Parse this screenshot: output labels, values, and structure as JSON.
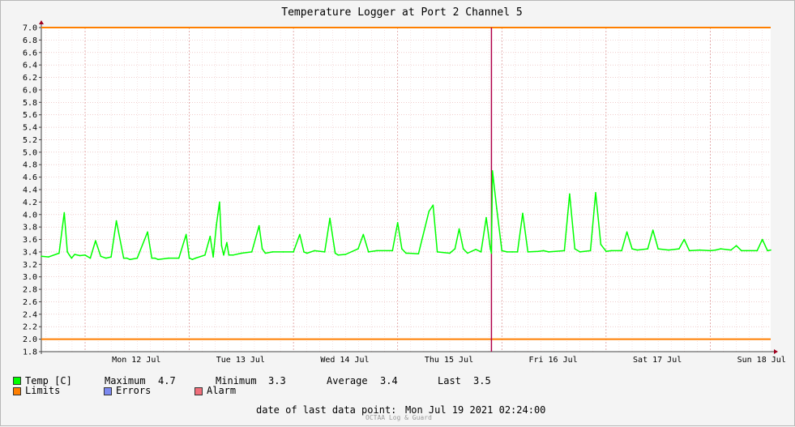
{
  "chart_data": {
    "type": "line",
    "title": "Temperature Logger at Port 2 Channel 5",
    "ylim": [
      1.8,
      7.0
    ],
    "yticks": [
      1.8,
      2.0,
      2.2,
      2.4,
      2.6,
      2.8,
      3.0,
      3.2,
      3.4,
      3.6,
      3.8,
      4.0,
      4.2,
      4.4,
      4.6,
      4.8,
      5.0,
      5.2,
      5.4,
      5.6,
      5.8,
      6.0,
      6.2,
      6.4,
      6.6,
      6.8,
      7.0
    ],
    "ytick_labels": [
      "1.8",
      "2.0",
      "2.2",
      "2.4",
      "2.6",
      "2.8",
      "3.0",
      "3.2",
      "3.4",
      "3.6",
      "3.8",
      "4.0",
      "4.2",
      "4.4",
      "4.6",
      "4.8",
      "5.0",
      "5.2",
      "5.4",
      "5.6",
      "5.8",
      "6.0",
      "6.2",
      "6.4",
      "6.6",
      "6.8",
      "7.0"
    ],
    "x_unit": "days since Mon 12 Jul 2021 00:00",
    "xlim": [
      -0.42,
      6.58
    ],
    "day_labels": [
      "Mon 12 Jul",
      "Tue 13 Jul",
      "Wed 14 Jul",
      "Thu 15 Jul",
      "Fri 16 Jul",
      "Sat 17 Jul",
      "Sun 18 Jul"
    ],
    "grid": true,
    "limits": {
      "upper": 7.0,
      "lower": 2.0,
      "color": "#ff7f00"
    },
    "marker": {
      "x": 3.9,
      "color": "#b0004a"
    },
    "series": [
      {
        "name": "Temp [C]",
        "color": "#00ff00",
        "x": [
          -0.42,
          -0.35,
          -0.25,
          -0.2,
          -0.17,
          -0.15,
          -0.13,
          -0.1,
          -0.05,
          0,
          0.05,
          0.1,
          0.15,
          0.2,
          0.25,
          0.3,
          0.37,
          0.4,
          0.43,
          0.5,
          0.6,
          0.64,
          0.67,
          0.7,
          0.8,
          0.9,
          0.97,
          1.0,
          1.03,
          1.06,
          1.15,
          1.2,
          1.23,
          1.26,
          1.29,
          1.31,
          1.33,
          1.36,
          1.38,
          1.42,
          1.5,
          1.6,
          1.67,
          1.7,
          1.73,
          1.8,
          1.9,
          2.0,
          2.06,
          2.1,
          2.13,
          2.2,
          2.3,
          2.35,
          2.4,
          2.43,
          2.5,
          2.62,
          2.67,
          2.72,
          2.8,
          2.95,
          3.0,
          3.04,
          3.08,
          3.1,
          3.2,
          3.3,
          3.34,
          3.38,
          3.5,
          3.55,
          3.59,
          3.63,
          3.67,
          3.75,
          3.8,
          3.85,
          3.89,
          3.9,
          3.91,
          3.95,
          4.0,
          4.05,
          4.1,
          4.15,
          4.2,
          4.25,
          4.35,
          4.4,
          4.45,
          4.6,
          4.65,
          4.7,
          4.75,
          4.85,
          4.9,
          4.95,
          5.0,
          5.05,
          5.15,
          5.2,
          5.25,
          5.3,
          5.4,
          5.45,
          5.5,
          5.6,
          5.7,
          5.75,
          5.8,
          5.9,
          6.0,
          6.05,
          6.1,
          6.2,
          6.25,
          6.3,
          6.35,
          6.45,
          6.5,
          6.55,
          6.58
        ],
        "values": [
          3.33,
          3.32,
          3.38,
          4.03,
          3.4,
          3.35,
          3.3,
          3.36,
          3.34,
          3.35,
          3.3,
          3.58,
          3.33,
          3.3,
          3.32,
          3.9,
          3.3,
          3.3,
          3.28,
          3.3,
          3.72,
          3.3,
          3.3,
          3.28,
          3.3,
          3.3,
          3.68,
          3.3,
          3.28,
          3.3,
          3.35,
          3.65,
          3.32,
          3.83,
          4.2,
          3.5,
          3.35,
          3.55,
          3.35,
          3.35,
          3.38,
          3.4,
          3.82,
          3.45,
          3.38,
          3.4,
          3.4,
          3.4,
          3.68,
          3.4,
          3.38,
          3.42,
          3.4,
          3.94,
          3.38,
          3.35,
          3.36,
          3.45,
          3.68,
          3.4,
          3.42,
          3.42,
          3.87,
          3.45,
          3.38,
          3.38,
          3.37,
          4.05,
          4.15,
          3.4,
          3.38,
          3.45,
          3.77,
          3.45,
          3.38,
          3.44,
          3.4,
          3.95,
          3.45,
          3.38,
          4.7,
          4.1,
          3.42,
          3.4,
          3.4,
          3.4,
          4.02,
          3.4,
          3.41,
          3.42,
          3.4,
          3.42,
          4.33,
          3.45,
          3.4,
          3.42,
          4.35,
          3.52,
          3.41,
          3.42,
          3.42,
          3.72,
          3.45,
          3.43,
          3.45,
          3.75,
          3.45,
          3.43,
          3.45,
          3.6,
          3.42,
          3.43,
          3.42,
          3.43,
          3.45,
          3.43,
          3.5,
          3.42,
          3.42,
          3.42,
          3.6,
          3.42,
          3.43
        ]
      }
    ]
  },
  "legend": {
    "temp_label": "Temp [C]",
    "limits_label": "Limits",
    "errors_label": "Errors",
    "alarm_label": "Alarm",
    "temp_color": "#00ff00",
    "limits_color": "#ff7f00",
    "errors_color": "#7c89f0",
    "alarm_color": "#f06e7a"
  },
  "stats": {
    "max_label": "Maximum",
    "max_value": "4.7",
    "min_label": "Minimum",
    "min_value": "3.3",
    "avg_label": "Average",
    "avg_value": "3.4",
    "last_label": "Last",
    "last_value": "3.5"
  },
  "footer": {
    "last_point_label": "date of last data point:",
    "last_point_value": "Mon Jul 19 2021 02:24:00",
    "credit": "OCTAA Log & Guard"
  }
}
